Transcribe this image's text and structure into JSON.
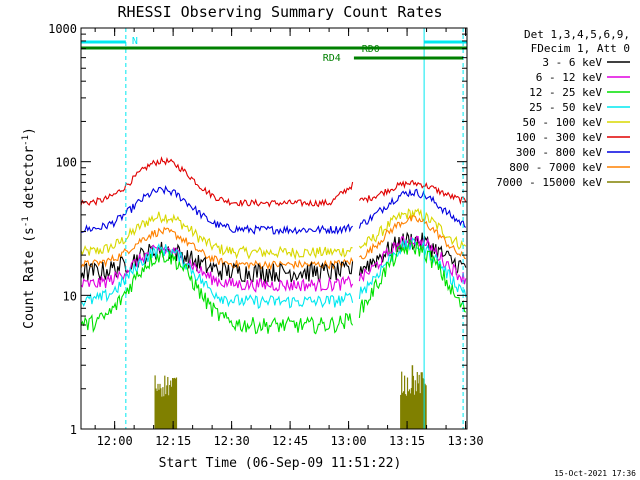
{
  "chart_data": {
    "type": "line",
    "title": "RHESSI Observing Summary Count Rates",
    "xlabel": "Start Time (06-Sep-09 11:51:22)",
    "ylabel_main": "Count Rate (s",
    "ylabel_sup1": "-1",
    "ylabel_mid": " detector",
    "ylabel_sup2": "-1",
    "ylabel_end": ")",
    "y_scale": "log",
    "ylim": [
      1,
      1000
    ],
    "xlim_minutes": [
      0,
      99
    ],
    "x_ticks": [
      {
        "label": "12:00",
        "min": 8.63
      },
      {
        "label": "12:15",
        "min": 23.63
      },
      {
        "label": "12:30",
        "min": 38.63
      },
      {
        "label": "12:45",
        "min": 53.63
      },
      {
        "label": "13:00",
        "min": 68.63
      },
      {
        "label": "13:15",
        "min": 83.63
      },
      {
        "label": "13:30",
        "min": 98.63
      }
    ],
    "y_ticks": [
      {
        "label": "1",
        "value": 1
      },
      {
        "label": "10",
        "value": 10
      },
      {
        "label": "100",
        "value": 100
      },
      {
        "label": "1000",
        "value": 1000
      }
    ],
    "legend_header": [
      "Det 1,3,4,5,6,9,",
      "FDecim 1, Att 0"
    ],
    "legend_position": "top-right",
    "series": [
      {
        "name": "3 - 6 keV",
        "color": "#000000",
        "base": 15,
        "amp1": 7,
        "amp2": 11,
        "noise": 0.12
      },
      {
        "name": "6 - 12 keV",
        "color": "#e000e0",
        "base": 12,
        "amp1": 10,
        "amp2": 14,
        "noise": 0.08
      },
      {
        "name": "12 - 25 keV",
        "color": "#00e000",
        "base": 6,
        "amp1": 14,
        "amp2": 17,
        "noise": 0.1
      },
      {
        "name": "25 - 50 keV",
        "color": "#00e8f0",
        "base": 9,
        "amp1": 13,
        "amp2": 15,
        "noise": 0.08
      },
      {
        "name": "50 - 100 keV",
        "color": "#d8d800",
        "base": 21,
        "amp1": 18,
        "amp2": 20,
        "noise": 0.07
      },
      {
        "name": "100 - 300 keV",
        "color": "#e00000",
        "base": 49,
        "amp1": 52,
        "amp2": 20,
        "noise": 0.04
      },
      {
        "name": "300 - 800 keV",
        "color": "#0000e0",
        "base": 31,
        "amp1": 30,
        "amp2": 28,
        "noise": 0.05
      },
      {
        "name": "800 - 7000 keV",
        "color": "#ff8000",
        "base": 17,
        "amp1": 13,
        "amp2": 20,
        "noise": 0.05
      },
      {
        "name": "7000 - 15000 keV",
        "color": "#808000",
        "base": 0,
        "amp1": 0,
        "amp2": 0,
        "noise": 0.0
      }
    ],
    "flag_labels": {
      "N": "N",
      "RD0": "RD0",
      "RD4": "RD4"
    },
    "flags": {
      "N_segments": [
        [
          0,
          11.5
        ],
        [
          88,
          99
        ]
      ],
      "RD0_segments": [
        [
          0,
          99
        ]
      ],
      "RD4_segments": [
        [
          70,
          98
        ]
      ]
    },
    "vertical_lines": {
      "solid": [
        0,
        88
      ],
      "dashed": [
        11.5,
        98
      ]
    },
    "timestamp": "15-Oct-2021 17:36"
  }
}
